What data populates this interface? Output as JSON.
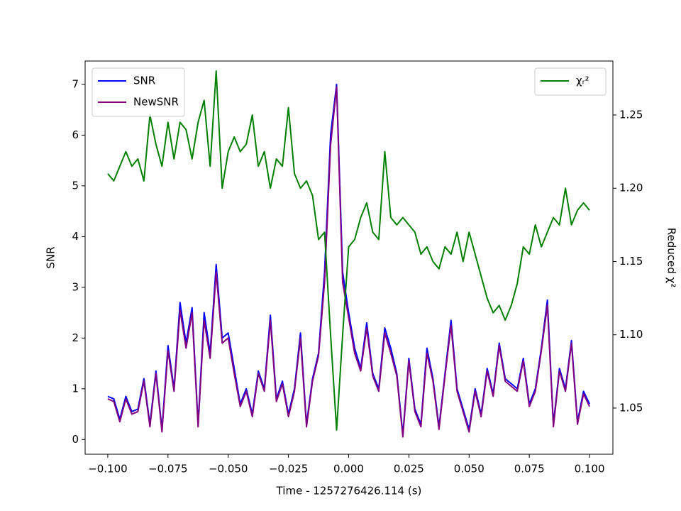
{
  "chart_data": {
    "type": "line",
    "xlabel": "Time - 1257276426.114 (s)",
    "ylabel": "SNR",
    "y2label": "Reduced χ²",
    "xlim": [
      -0.1094,
      0.1097
    ],
    "ylim": [
      -0.29,
      7.46
    ],
    "y2lim": [
      1.0185,
      1.2868
    ],
    "xticks": [
      {
        "value": -0.1,
        "label": "−0.100"
      },
      {
        "value": -0.075,
        "label": "−0.075"
      },
      {
        "value": -0.05,
        "label": "−0.050"
      },
      {
        "value": -0.025,
        "label": "−0.025"
      },
      {
        "value": 0,
        "label": "0.000"
      },
      {
        "value": 0.025,
        "label": "0.025"
      },
      {
        "value": 0.05,
        "label": "0.050"
      },
      {
        "value": 0.075,
        "label": "0.075"
      },
      {
        "value": 0.1,
        "label": "0.100"
      }
    ],
    "yticks": [
      0,
      1,
      2,
      3,
      4,
      5,
      6,
      7
    ],
    "y2ticks": [
      1.05,
      {
        "value": 1.1,
        "label": "1.10"
      },
      1.15,
      {
        "value": 1.2,
        "label": "1.20"
      },
      1.25
    ],
    "legend": "upper left",
    "legend2": "upper right",
    "x": [
      -0.1,
      -0.0975,
      -0.095,
      -0.0925,
      -0.09,
      -0.0875,
      -0.085,
      -0.0825,
      -0.08,
      -0.0775,
      -0.075,
      -0.0725,
      -0.07,
      -0.0675,
      -0.065,
      -0.0625,
      -0.06,
      -0.0575,
      -0.055,
      -0.0525,
      -0.05,
      -0.0475,
      -0.045,
      -0.0425,
      -0.04,
      -0.0375,
      -0.035,
      -0.0325,
      -0.03,
      -0.0275,
      -0.025,
      -0.0225,
      -0.02,
      -0.0175,
      -0.015,
      -0.0125,
      -0.01,
      -0.0075,
      -0.005,
      -0.0025,
      0,
      0.0025,
      0.005,
      0.0075,
      0.01,
      0.0125,
      0.015,
      0.0175,
      0.02,
      0.0225,
      0.025,
      0.0275,
      0.03,
      0.0325,
      0.035,
      0.0375,
      0.04,
      0.0425,
      0.045,
      0.0475,
      0.05,
      0.0525,
      0.055,
      0.0575,
      0.06,
      0.0625,
      0.065,
      0.0675,
      0.07,
      0.0725,
      0.075,
      0.0775,
      0.08,
      0.0825,
      0.085,
      0.0875,
      0.09,
      0.0925,
      0.095,
      0.0975,
      0.1
    ],
    "series": [
      {
        "name": "SNR",
        "color": "#0000ff",
        "values": [
          0.85,
          0.8,
          0.4,
          0.85,
          0.55,
          0.6,
          1.2,
          0.3,
          1.35,
          0.2,
          1.85,
          1.0,
          2.7,
          1.9,
          2.6,
          0.3,
          2.5,
          1.7,
          3.45,
          2.0,
          2.1,
          1.4,
          0.7,
          1.0,
          0.5,
          1.35,
          1.0,
          2.45,
          0.8,
          1.15,
          0.5,
          1.0,
          2.1,
          0.3,
          1.2,
          1.7,
          3.3,
          6.0,
          7.0,
          3.3,
          2.5,
          1.8,
          1.4,
          2.3,
          1.3,
          1.0,
          2.2,
          1.8,
          1.3,
          0.1,
          1.6,
          0.6,
          0.3,
          1.8,
          1.2,
          0.25,
          1.3,
          2.35,
          1.0,
          0.6,
          0.2,
          1.0,
          0.5,
          1.4,
          0.9,
          1.9,
          1.2,
          1.1,
          1.0,
          1.6,
          0.7,
          1.0,
          1.8,
          2.75,
          0.3,
          1.4,
          1.0,
          1.95,
          0.35,
          0.95,
          0.7
        ]
      },
      {
        "name": "NewSNR",
        "color": "#800080",
        "values": [
          0.8,
          0.75,
          0.35,
          0.8,
          0.5,
          0.55,
          1.15,
          0.25,
          1.3,
          0.15,
          1.75,
          0.95,
          2.55,
          1.8,
          2.5,
          0.25,
          2.35,
          1.6,
          3.3,
          1.9,
          2.0,
          1.3,
          0.65,
          0.95,
          0.45,
          1.3,
          0.95,
          2.35,
          0.75,
          1.1,
          0.45,
          0.95,
          2.0,
          0.25,
          1.15,
          1.65,
          3.1,
          5.8,
          6.95,
          3.1,
          2.4,
          1.7,
          1.35,
          2.2,
          1.25,
          0.95,
          2.1,
          1.7,
          1.25,
          0.05,
          1.55,
          0.55,
          0.25,
          1.7,
          1.15,
          0.2,
          1.25,
          2.25,
          0.95,
          0.55,
          0.15,
          0.95,
          0.45,
          1.35,
          0.85,
          1.85,
          1.15,
          1.05,
          0.95,
          1.55,
          0.65,
          0.95,
          1.75,
          2.65,
          0.25,
          1.35,
          0.95,
          1.9,
          0.3,
          0.9,
          0.65
        ]
      },
      {
        "name": "χᵣ²",
        "color": "#008000",
        "axis": "y2",
        "values": [
          1.21,
          1.205,
          1.215,
          1.225,
          1.215,
          1.22,
          1.205,
          1.25,
          1.23,
          1.215,
          1.245,
          1.22,
          1.245,
          1.24,
          1.22,
          1.245,
          1.26,
          1.215,
          1.28,
          1.2,
          1.225,
          1.235,
          1.225,
          1.23,
          1.25,
          1.215,
          1.225,
          1.2,
          1.22,
          1.215,
          1.255,
          1.21,
          1.2,
          1.205,
          1.195,
          1.165,
          1.17,
          1.1,
          1.035,
          1.1,
          1.16,
          1.165,
          1.18,
          1.19,
          1.17,
          1.165,
          1.225,
          1.18,
          1.175,
          1.18,
          1.175,
          1.17,
          1.155,
          1.16,
          1.15,
          1.145,
          1.16,
          1.155,
          1.17,
          1.15,
          1.17,
          1.155,
          1.14,
          1.125,
          1.115,
          1.12,
          1.11,
          1.12,
          1.135,
          1.16,
          1.155,
          1.175,
          1.16,
          1.17,
          1.18,
          1.175,
          1.2,
          1.175,
          1.185,
          1.19,
          1.185
        ]
      }
    ]
  }
}
